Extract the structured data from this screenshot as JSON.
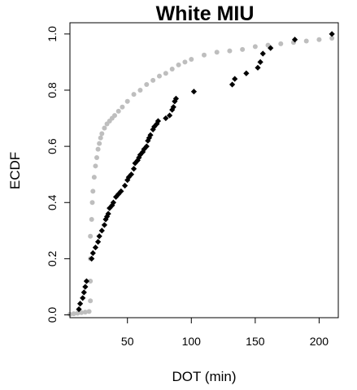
{
  "chart_data": {
    "type": "scatter",
    "title": "White MIU",
    "xlabel": "DOT (min)",
    "ylabel": "ECDF",
    "xlim": [
      5,
      215
    ],
    "ylim": [
      -0.01,
      1.04
    ],
    "x_ticks": [
      50,
      100,
      150,
      200
    ],
    "x_tick_labels": [
      "50",
      "100",
      "150",
      "200"
    ],
    "y_ticks": [
      0.0,
      0.2,
      0.4,
      0.6,
      0.8,
      1.0
    ],
    "y_tick_labels": [
      "0.0",
      "0.2",
      "0.4",
      "0.6",
      "0.8",
      "1.0"
    ],
    "grid": false,
    "series": [
      {
        "marker": "circle",
        "color": "#bebebe",
        "x": [
          5,
          8,
          11,
          14,
          17,
          20,
          21,
          21,
          21,
          21,
          22,
          22.5,
          23,
          24,
          25,
          26,
          27,
          28,
          29,
          30,
          32,
          34,
          36,
          38,
          40,
          43,
          46,
          50,
          55,
          60,
          65,
          70,
          75,
          80,
          85,
          90,
          95,
          100,
          110,
          120,
          130,
          140,
          150,
          160,
          170,
          180,
          190,
          200,
          210
        ],
        "y": [
          0.002,
          0.004,
          0.006,
          0.008,
          0.01,
          0.012,
          0.05,
          0.12,
          0.2,
          0.28,
          0.34,
          0.4,
          0.44,
          0.49,
          0.53,
          0.56,
          0.59,
          0.61,
          0.63,
          0.645,
          0.665,
          0.68,
          0.69,
          0.7,
          0.71,
          0.725,
          0.74,
          0.76,
          0.785,
          0.8,
          0.82,
          0.835,
          0.85,
          0.86,
          0.875,
          0.89,
          0.9,
          0.91,
          0.925,
          0.935,
          0.94,
          0.945,
          0.955,
          0.96,
          0.965,
          0.97,
          0.975,
          0.98,
          0.985
        ]
      },
      {
        "marker": "diamond",
        "color": "#000000",
        "x": [
          12,
          13,
          15,
          16,
          17,
          18,
          22,
          23,
          25,
          27,
          28,
          30,
          32,
          33,
          34,
          35,
          36,
          38,
          39,
          41,
          43,
          45,
          48,
          50,
          51,
          53,
          55,
          56,
          58,
          59,
          60,
          62,
          63,
          65,
          66,
          67,
          68,
          70,
          71,
          73,
          74,
          80,
          83,
          85,
          86,
          87,
          88,
          102,
          132,
          134,
          143,
          152,
          154,
          156,
          162,
          181,
          210
        ],
        "y": [
          0.02,
          0.04,
          0.06,
          0.08,
          0.1,
          0.12,
          0.2,
          0.22,
          0.24,
          0.26,
          0.28,
          0.3,
          0.32,
          0.34,
          0.35,
          0.36,
          0.38,
          0.39,
          0.4,
          0.42,
          0.43,
          0.44,
          0.46,
          0.48,
          0.49,
          0.5,
          0.52,
          0.54,
          0.55,
          0.56,
          0.57,
          0.58,
          0.59,
          0.6,
          0.62,
          0.63,
          0.64,
          0.66,
          0.67,
          0.68,
          0.69,
          0.7,
          0.71,
          0.73,
          0.74,
          0.76,
          0.77,
          0.795,
          0.82,
          0.84,
          0.86,
          0.88,
          0.9,
          0.93,
          0.95,
          0.98,
          1.0
        ]
      }
    ]
  }
}
